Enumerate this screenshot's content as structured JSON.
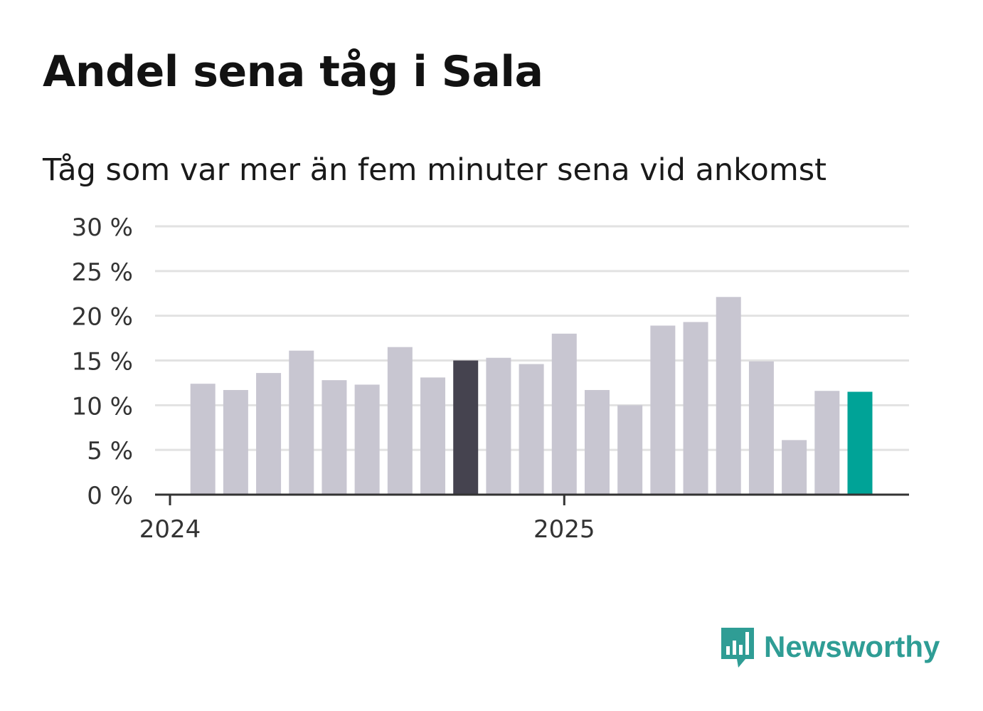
{
  "title": "Andel sena tåg i Sala",
  "subtitle": "Tåg som var mer än fem minuter sena vid ankomst",
  "brand": {
    "name": "Newsworthy",
    "color": "#2f9d95",
    "icon": "bar-chart-speech-bubble-icon"
  },
  "chart_data": {
    "type": "bar",
    "title": "Andel sena tåg i Sala",
    "subtitle": "Tåg som var mer än fem minuter sena vid ankomst",
    "xlabel": "",
    "ylabel": "",
    "ylim": [
      0,
      30
    ],
    "yticks": [
      0,
      5,
      10,
      15,
      20,
      25,
      30
    ],
    "ytick_labels": [
      "0 %",
      "5 %",
      "10 %",
      "15 %",
      "20 %",
      "25 %",
      "30 %"
    ],
    "xtick_labels": [
      {
        "label": "2024",
        "at_index": 0
      },
      {
        "label": "2025",
        "at_index": 12
      }
    ],
    "grid": true,
    "period": "monthly, Jan 2024 – Oct 2025",
    "values": [
      null,
      12.4,
      11.7,
      13.6,
      16.1,
      12.8,
      12.3,
      16.5,
      13.1,
      15.0,
      15.3,
      14.6,
      18.0,
      11.7,
      10.0,
      18.9,
      19.3,
      22.1,
      14.9,
      6.1,
      11.6,
      11.5
    ],
    "colors": {
      "default": "#c8c6d1",
      "highlight": "#45434f",
      "latest": "#00a397",
      "grid": "#e2e2e2",
      "axis": "#333333"
    },
    "highlight_index": 9,
    "latest_index": 21
  }
}
